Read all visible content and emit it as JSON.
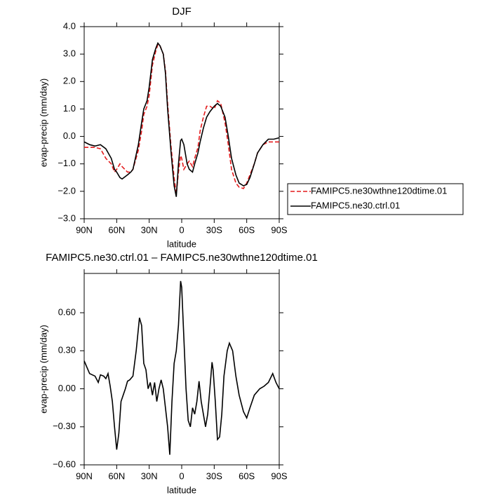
{
  "chart_data": [
    {
      "type": "line",
      "title": "DJF",
      "xlabel": "latitude",
      "ylabel": "evap-precip (mm/day)",
      "x": [
        90,
        85,
        80,
        75,
        70,
        65,
        62,
        60,
        57,
        55,
        50,
        47,
        45,
        40,
        37,
        35,
        32,
        30,
        27,
        24,
        22,
        20,
        17,
        15,
        13,
        10,
        7,
        5,
        3,
        1,
        0,
        -2,
        -5,
        -7,
        -10,
        -12,
        -15,
        -17,
        -20,
        -23,
        -26,
        -30,
        -33,
        -36,
        -40,
        -43,
        -46,
        -50,
        -53,
        -57,
        -60,
        -63,
        -67,
        -70,
        -75,
        -80,
        -85,
        -90
      ],
      "series": [
        {
          "name": "FAMIPC5.ne30wthne120dtime.01",
          "color": "#e41a1c",
          "linestyle": "dashed",
          "values": [
            -0.4,
            -0.4,
            -0.4,
            -0.45,
            -0.8,
            -1.0,
            -1.3,
            -1.2,
            -1.0,
            -1.1,
            -1.3,
            -1.3,
            -1.2,
            -0.5,
            0.2,
            0.8,
            1.1,
            1.5,
            2.6,
            3.1,
            3.35,
            3.3,
            3.0,
            2.4,
            1.2,
            -0.3,
            -1.5,
            -2.1,
            -1.3,
            -0.7,
            -0.8,
            -1.2,
            -1.0,
            -0.9,
            -1.1,
            -0.8,
            -0.4,
            0.2,
            0.7,
            1.1,
            1.1,
            1.0,
            1.3,
            1.2,
            0.5,
            -0.3,
            -1.2,
            -1.7,
            -1.85,
            -1.9,
            -1.7,
            -1.4,
            -1.0,
            -0.6,
            -0.3,
            -0.2,
            -0.2,
            -0.2
          ]
        },
        {
          "name": "FAMIPC5.ne30.ctrl.01",
          "color": "#000000",
          "linestyle": "solid",
          "values": [
            -0.2,
            -0.3,
            -0.35,
            -0.3,
            -0.45,
            -0.8,
            -1.2,
            -1.3,
            -1.5,
            -1.55,
            -1.4,
            -1.3,
            -1.2,
            -0.3,
            0.5,
            1.0,
            1.3,
            1.8,
            2.8,
            3.2,
            3.4,
            3.3,
            3.0,
            2.3,
            1.0,
            -0.5,
            -1.8,
            -2.2,
            -1.0,
            -0.15,
            -0.1,
            -0.3,
            -1.0,
            -1.2,
            -1.3,
            -1.0,
            -0.6,
            -0.2,
            0.3,
            0.7,
            0.9,
            1.1,
            1.2,
            1.1,
            0.7,
            0.0,
            -0.8,
            -1.4,
            -1.7,
            -1.8,
            -1.75,
            -1.5,
            -1.0,
            -0.6,
            -0.3,
            -0.1,
            -0.1,
            -0.05
          ]
        }
      ],
      "xlim": [
        90,
        -90
      ],
      "xticks": [
        {
          "value": 90,
          "label": "90N"
        },
        {
          "value": 60,
          "label": "60N"
        },
        {
          "value": 30,
          "label": "30N"
        },
        0,
        {
          "value": -30,
          "label": "30S"
        },
        {
          "value": -60,
          "label": "60S"
        },
        {
          "value": -90,
          "label": "90S"
        }
      ],
      "ylim": [
        -3,
        4
      ],
      "yticks": [
        {
          "value": -3,
          "label": "−3.0"
        },
        {
          "value": -2,
          "label": "−2.0"
        },
        {
          "value": -1,
          "label": "−1.0"
        },
        {
          "value": 0,
          "label": "0.0"
        },
        {
          "value": 1,
          "label": "1.0"
        },
        {
          "value": 2,
          "label": "2.0"
        },
        {
          "value": 3,
          "label": "3.0"
        },
        {
          "value": 4,
          "label": "4.0"
        }
      ],
      "legend": "right"
    },
    {
      "type": "line",
      "title": "FAMIPC5.ne30.ctrl.01 – FAMIPC5.ne30wthne120dtime.01",
      "xlabel": "latitude",
      "ylabel": "evap-precip (mm/day)",
      "x": [
        90,
        85,
        80,
        77,
        75,
        72,
        70,
        68,
        66,
        64,
        62,
        60,
        58,
        56,
        54,
        52,
        50,
        48,
        45,
        42,
        39,
        37,
        35,
        33,
        31,
        29,
        27,
        25,
        23,
        21,
        19,
        17,
        15,
        13,
        11,
        9,
        7,
        5,
        3,
        1,
        0,
        -2,
        -4,
        -6,
        -8,
        -10,
        -12,
        -14,
        -16,
        -18,
        -20,
        -22,
        -24,
        -26,
        -28,
        -29,
        -31,
        -33,
        -35,
        -37,
        -39,
        -42,
        -44,
        -47,
        -50,
        -53,
        -57,
        -60,
        -63,
        -67,
        -72,
        -76,
        -80,
        -84,
        -87,
        -90
      ],
      "series": [
        {
          "color": "#000000",
          "linestyle": "solid",
          "values": [
            0.22,
            0.12,
            0.1,
            0.05,
            0.11,
            0.1,
            0.08,
            0.12,
            0.02,
            -0.1,
            -0.3,
            -0.48,
            -0.35,
            -0.1,
            -0.05,
            0.0,
            0.06,
            0.07,
            0.1,
            0.3,
            0.56,
            0.5,
            0.2,
            0.15,
            0.0,
            0.05,
            -0.05,
            0.05,
            -0.1,
            0.0,
            0.07,
            0.0,
            -0.15,
            -0.3,
            -0.52,
            -0.1,
            0.2,
            0.3,
            0.5,
            0.85,
            0.8,
            0.4,
            0.0,
            -0.25,
            -0.3,
            -0.15,
            -0.2,
            -0.1,
            0.06,
            -0.1,
            -0.2,
            -0.3,
            -0.2,
            0.0,
            0.21,
            0.15,
            -0.1,
            -0.4,
            -0.38,
            -0.2,
            0.1,
            0.3,
            0.36,
            0.3,
            0.1,
            -0.05,
            -0.18,
            -0.23,
            -0.15,
            -0.05,
            0.0,
            0.02,
            0.05,
            0.12,
            0.05,
            0.0
          ]
        }
      ],
      "xlim": [
        90,
        -90
      ],
      "xticks": [
        {
          "value": 90,
          "label": "90N"
        },
        {
          "value": 60,
          "label": "60N"
        },
        {
          "value": 30,
          "label": "30N"
        },
        0,
        {
          "value": -30,
          "label": "30S"
        },
        {
          "value": -60,
          "label": "60S"
        },
        {
          "value": -90,
          "label": "90S"
        }
      ],
      "ylim": [
        -0.6,
        0.91
      ],
      "yticks": [
        {
          "value": -0.6,
          "label": "−0.60"
        },
        {
          "value": -0.3,
          "label": "−0.30"
        },
        {
          "value": 0,
          "label": "0.00"
        },
        {
          "value": 0.3,
          "label": "0.30"
        },
        {
          "value": 0.6,
          "label": "0.60"
        }
      ]
    }
  ]
}
